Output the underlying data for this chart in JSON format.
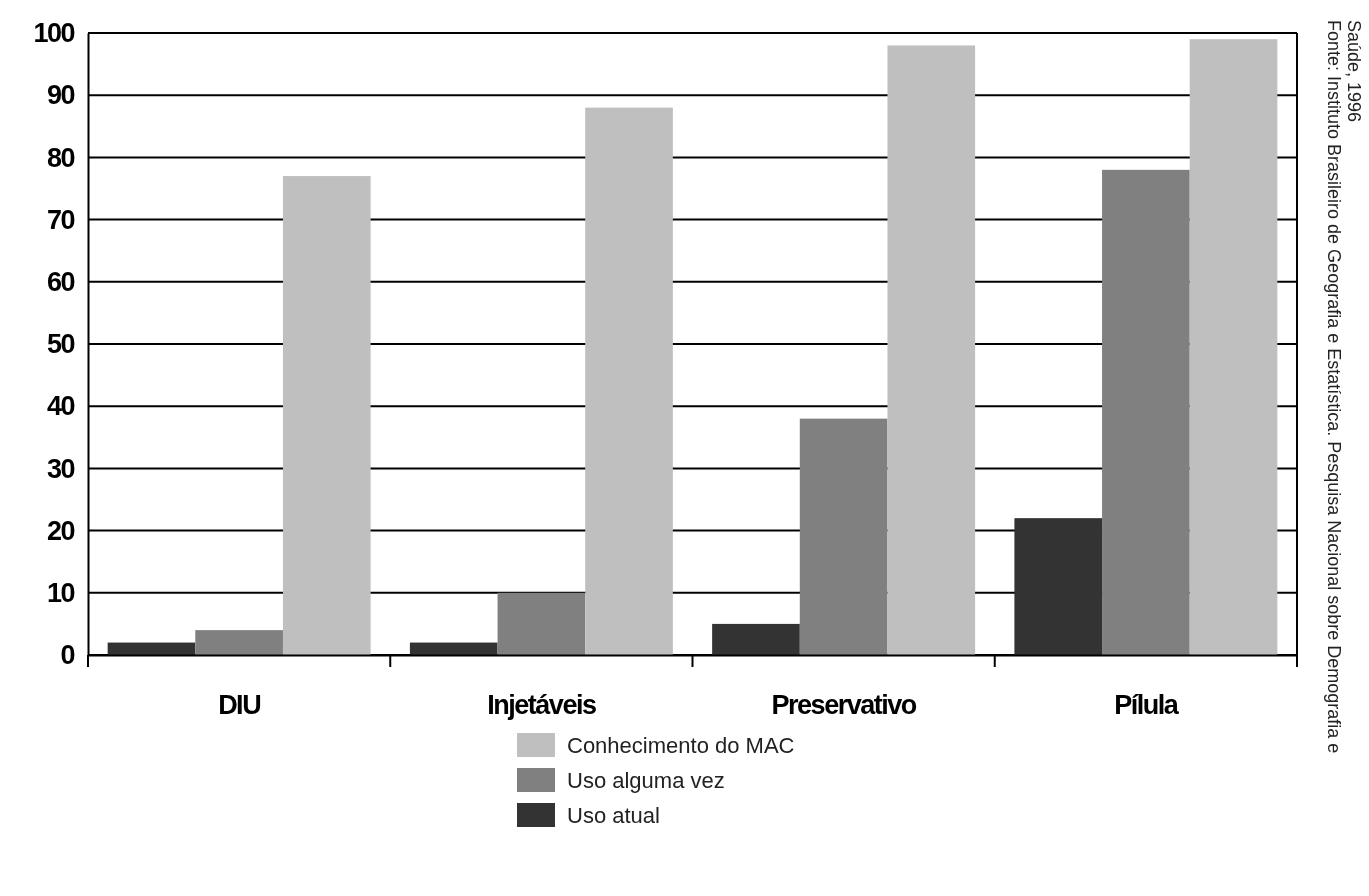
{
  "chart_data": {
    "type": "bar",
    "categories": [
      "DIU",
      "Injetáveis",
      "Preservativo",
      "Pílula"
    ],
    "series": [
      {
        "name": "Uso atual",
        "color": "#333333",
        "values": [
          2,
          2,
          5,
          22
        ]
      },
      {
        "name": "Uso alguma vez",
        "color": "#808080",
        "values": [
          4,
          10,
          38,
          78
        ]
      },
      {
        "name": "Conhecimento do MAC",
        "color": "#bfbfbf",
        "values": [
          77,
          88,
          98,
          99
        ]
      }
    ],
    "ylim": [
      0,
      100
    ],
    "yticks": [
      0,
      10,
      20,
      30,
      40,
      50,
      60,
      70,
      80,
      90,
      100
    ],
    "grid": "y",
    "legend": "bottom",
    "annotations": [
      "Fonte: Instituto Brasileiro de Geografia e Estatística. Pesquisa Nacional sobre Demografia e Saúde, 1996"
    ]
  }
}
